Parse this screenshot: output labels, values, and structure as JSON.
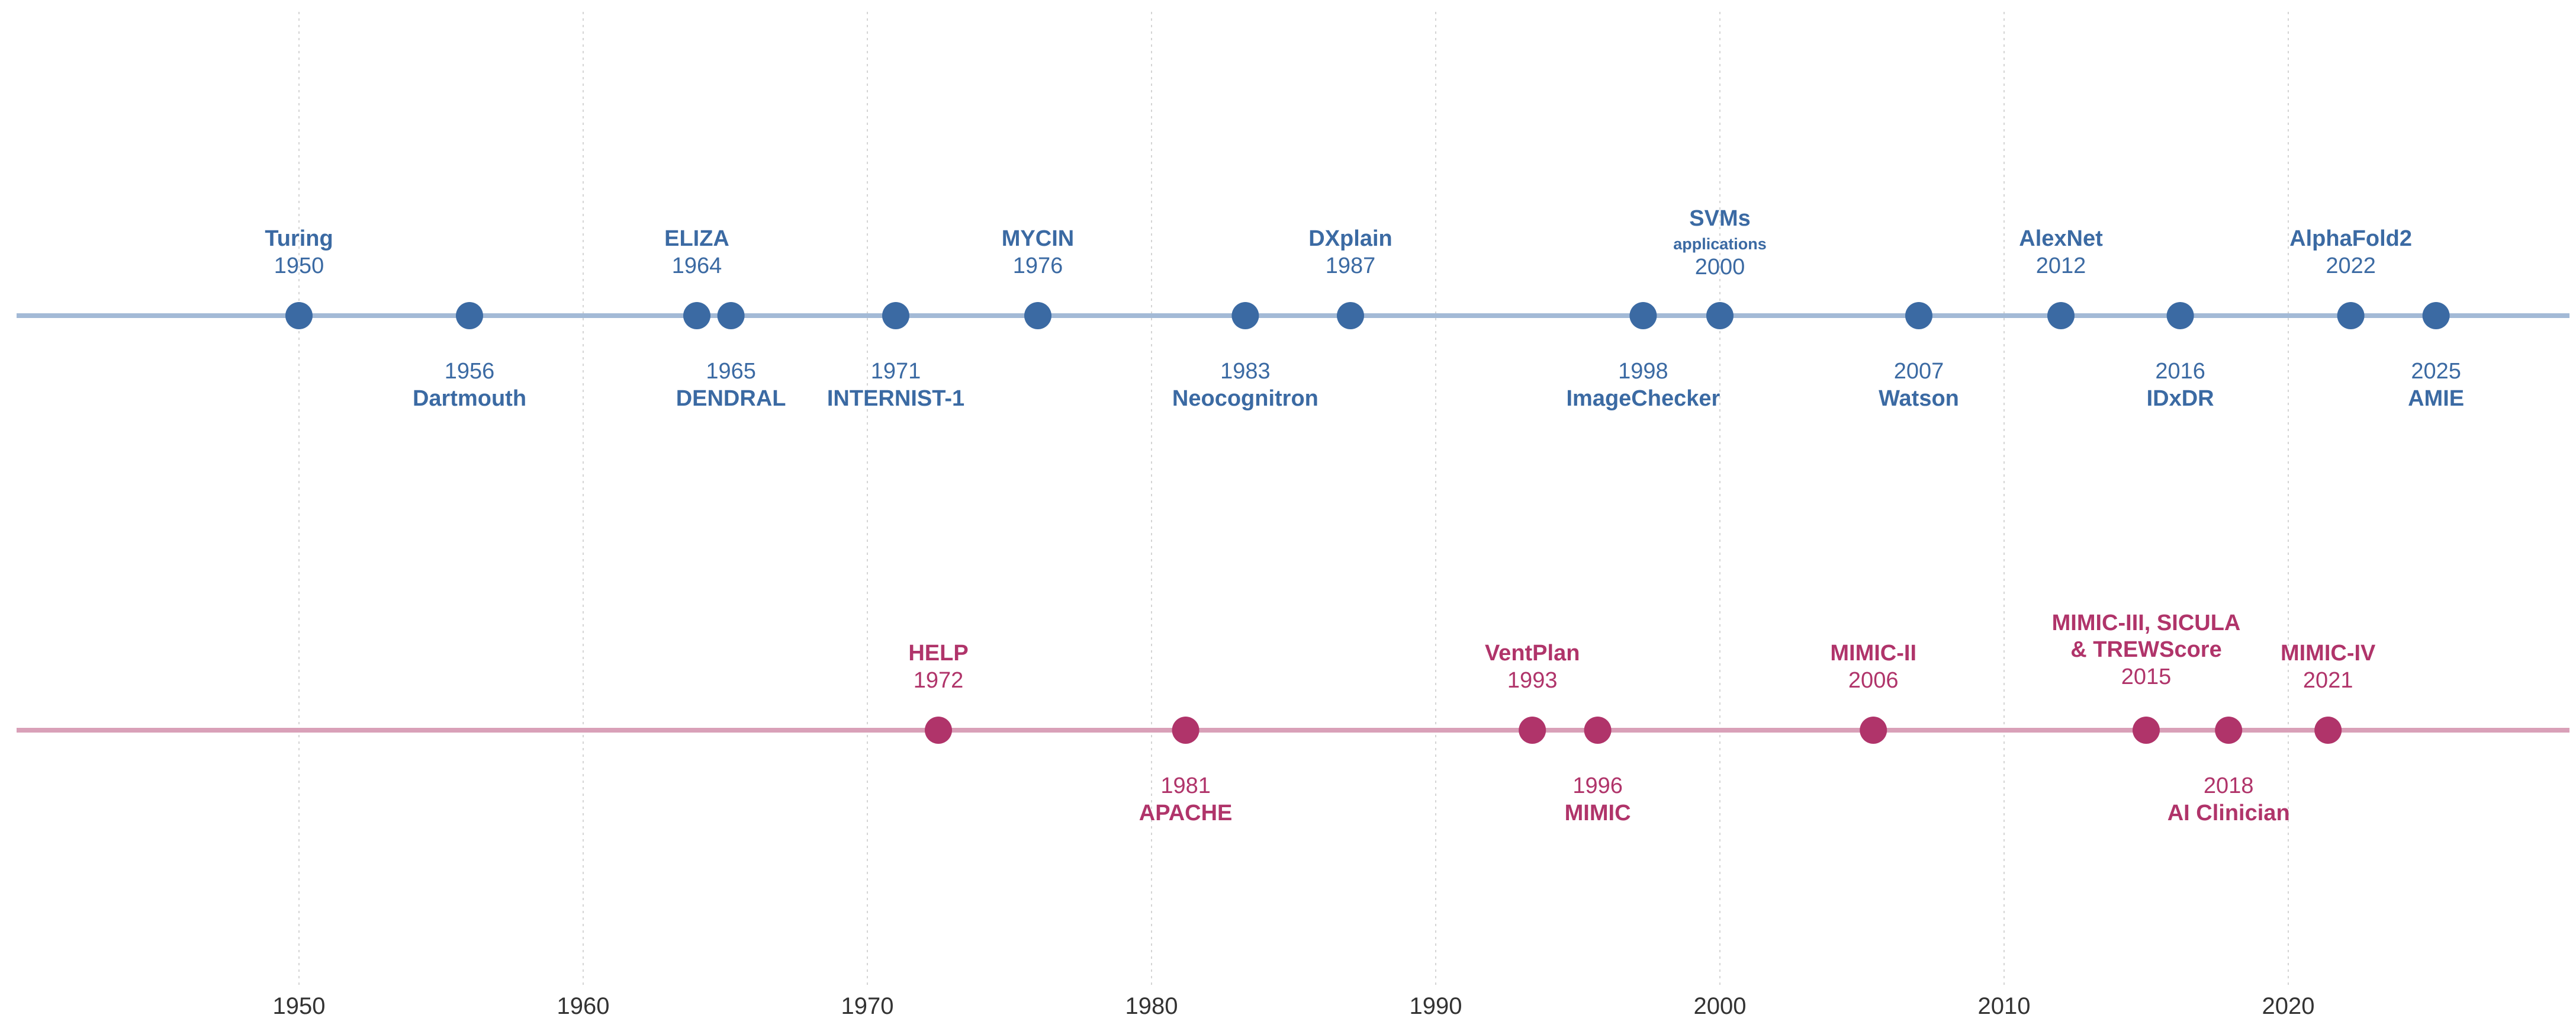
{
  "chart_data": {
    "type": "timeline",
    "x_ticks": [
      1950,
      1960,
      1970,
      1980,
      1990,
      2000,
      2010,
      2020
    ],
    "xlim": [
      1940,
      2030
    ],
    "grid": "vertical dotted",
    "series": [
      {
        "name": "AI milestones",
        "color": "#3b6aa3",
        "line_color": "#a3bad6",
        "events": [
          {
            "x": 1950.0,
            "year": "1950",
            "name": "Turing",
            "side": "above"
          },
          {
            "x": 1956.0,
            "year": "1956",
            "name": "Dartmouth",
            "side": "below"
          },
          {
            "x": 1964.0,
            "year": "1964",
            "name": "ELIZA",
            "side": "above"
          },
          {
            "x": 1965.2,
            "year": "1965",
            "name": "DENDRAL",
            "side": "below"
          },
          {
            "x": 1971.0,
            "year": "1971",
            "name": "INTERNIST-1",
            "side": "below"
          },
          {
            "x": 1976.0,
            "year": "1976",
            "name": "MYCIN",
            "side": "above"
          },
          {
            "x": 1983.3,
            "year": "1983",
            "name": "Neocognitron",
            "side": "below"
          },
          {
            "x": 1987.0,
            "year": "1987",
            "name": "DXplain",
            "side": "above"
          },
          {
            "x": 1997.3,
            "year": "1998",
            "name": "ImageChecker",
            "side": "below"
          },
          {
            "x": 2000.0,
            "year": "2000",
            "name": "SVMs",
            "subtitle": "applications",
            "side": "above"
          },
          {
            "x": 2007.0,
            "year": "2007",
            "name": "Watson",
            "side": "below"
          },
          {
            "x": 2012.0,
            "year": "2012",
            "name": "AlexNet",
            "side": "above"
          },
          {
            "x": 2016.2,
            "year": "2016",
            "name": "IDxDR",
            "side": "below"
          },
          {
            "x": 2022.2,
            "year": "2022",
            "name": "AlphaFold2",
            "side": "above"
          },
          {
            "x": 2025.2,
            "year": "2025",
            "name": "AMIE",
            "side": "below"
          }
        ]
      },
      {
        "name": "Critical care AI milestones",
        "color": "#b0346a",
        "line_color": "#d9a0b8",
        "events": [
          {
            "x": 1972.5,
            "year": "1972",
            "name": "HELP",
            "side": "above"
          },
          {
            "x": 1981.2,
            "year": "1981",
            "name": "APACHE",
            "side": "below"
          },
          {
            "x": 1993.4,
            "year": "1993",
            "name": "VentPlan",
            "side": "above"
          },
          {
            "x": 1995.7,
            "year": "1996",
            "name": "MIMIC",
            "side": "below"
          },
          {
            "x": 2005.4,
            "year": "2006",
            "name": "MIMIC-II",
            "side": "above"
          },
          {
            "x": 2015.0,
            "year": "2015",
            "name": "MIMIC-III, SICULA",
            "name2": "& TREWScore",
            "side": "above"
          },
          {
            "x": 2017.9,
            "year": "2018",
            "name": "AI Clinician",
            "side": "below"
          },
          {
            "x": 2021.4,
            "year": "2021",
            "name": "MIMIC-IV",
            "side": "above"
          }
        ]
      }
    ]
  }
}
